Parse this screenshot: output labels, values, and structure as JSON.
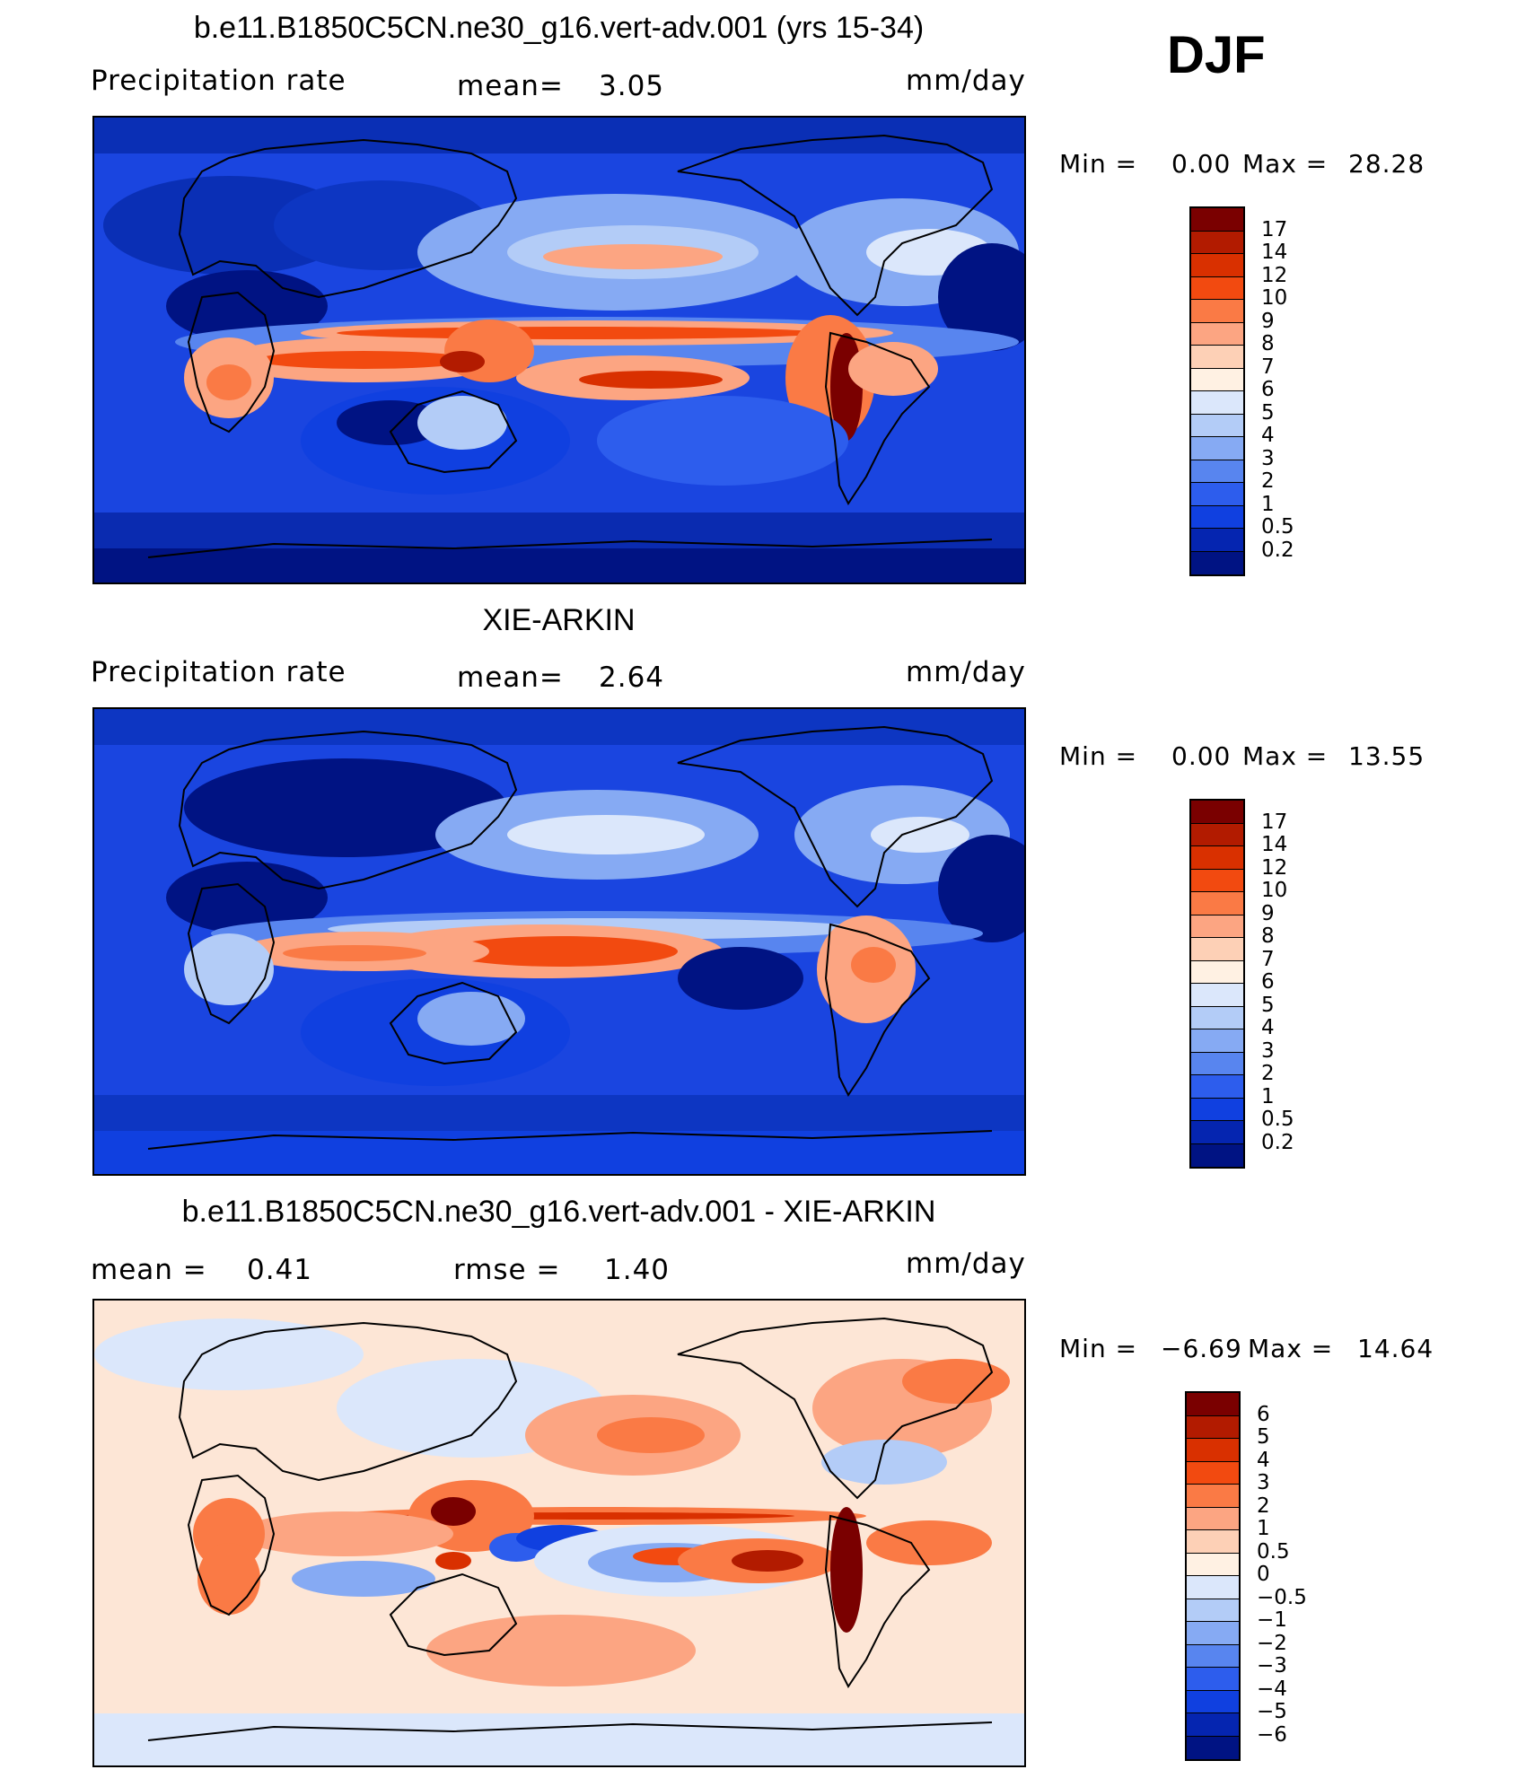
{
  "season": "DJF",
  "panels": [
    {
      "title": "b.e11.B1850C5CN.ne30_g16.vert-adv.001 (yrs 15-34)",
      "left_label": "Precipitation  rate",
      "center_label": "mean=",
      "center_value": "3.05",
      "right_label": "mm/day",
      "min_label": "Min  =",
      "min_value": "0.00",
      "max_label": "Max  =",
      "max_value": "28.28"
    },
    {
      "title": "XIE-ARKIN",
      "left_label": "Precipitation  rate",
      "center_label": "mean=",
      "center_value": "2.64",
      "right_label": "mm/day",
      "min_label": "Min  =",
      "min_value": "0.00",
      "max_label": "Max  =",
      "max_value": "13.55"
    },
    {
      "title": "b.e11.B1850C5CN.ne30_g16.vert-adv.001 - XIE-ARKIN",
      "left_label": "mean  =",
      "left_value": "0.41",
      "center_label": "rmse  =",
      "center_value": "1.40",
      "right_label": "mm/day",
      "min_label": "Min  =",
      "min_value": "−6.69",
      "max_label": "Max  =",
      "max_value": "14.64"
    }
  ],
  "colorbars": {
    "precip": {
      "levels": [
        "17",
        "14",
        "12",
        "10",
        "9",
        "8",
        "7",
        "6",
        "5",
        "4",
        "3",
        "2",
        "1",
        "0.5",
        "0.2"
      ],
      "colors": [
        "#7a0000",
        "#b21b00",
        "#d93000",
        "#f24a10",
        "#fa7a45",
        "#fca582",
        "#fdd0b6",
        "#fff1e3",
        "#dbe7fb",
        "#b3ccf7",
        "#86aaf3",
        "#5885ef",
        "#2d5ded",
        "#1040e0",
        "#0525b0",
        "#001383"
      ]
    },
    "diff": {
      "levels": [
        "6",
        "5",
        "4",
        "3",
        "2",
        "1",
        "0.5",
        "0",
        "−0.5",
        "−1",
        "−2",
        "−3",
        "−4",
        "−5",
        "−6"
      ],
      "colors": [
        "#7a0000",
        "#b21b00",
        "#d93000",
        "#f24a10",
        "#fa7a45",
        "#fca582",
        "#fdd0b6",
        "#fff1e3",
        "#dbe7fb",
        "#b3ccf7",
        "#86aaf3",
        "#5885ef",
        "#2d5ded",
        "#1040e0",
        "#0525b0",
        "#001383"
      ]
    }
  },
  "map_colors": {
    "precip_background": "#1a45e0",
    "diff_background": "#fde6d6"
  }
}
